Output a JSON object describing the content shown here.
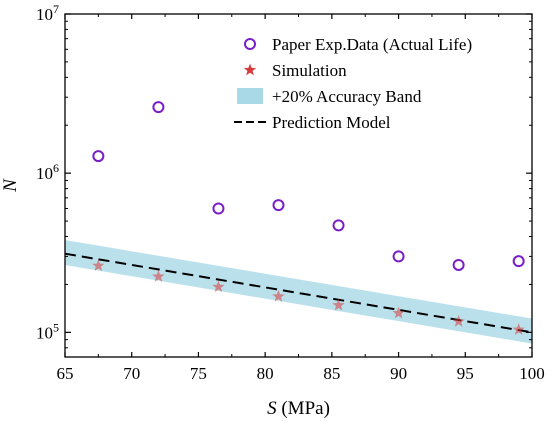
{
  "chart_data": {
    "type": "scatter",
    "title": "",
    "xlabel_var": "S",
    "xlabel_unit": " (MPa)",
    "ylabel": "N",
    "xlim": [
      65,
      100
    ],
    "ylim": [
      70000,
      10000000
    ],
    "yscale": "log",
    "x_ticks": [
      65,
      70,
      75,
      80,
      85,
      90,
      95,
      100
    ],
    "y_ticks": [
      {
        "value": 100000,
        "base": "10",
        "exp": "5"
      },
      {
        "value": 1000000,
        "base": "10",
        "exp": "6"
      },
      {
        "value": 10000000,
        "base": "10",
        "exp": "7"
      }
    ],
    "grid": false,
    "legend_position": "top-right",
    "colors": {
      "experimental": "#7a1fc8",
      "simulation": "#d83a3a",
      "band": "#a9d9e6",
      "model": "#000000"
    },
    "series": [
      {
        "name": "Paper Exp.Data (Actual Life)",
        "marker": "circle",
        "x": [
          67.5,
          72,
          76.5,
          81,
          85.5,
          90,
          94.5,
          99
        ],
        "y": [
          1280000,
          2600000,
          600000,
          630000,
          470000,
          300000,
          265000,
          280000
        ]
      },
      {
        "name": "Simulation",
        "marker": "star",
        "x": [
          67.5,
          72,
          76.5,
          81,
          85.5,
          90,
          94.5,
          99
        ],
        "y": [
          262000,
          224000,
          193000,
          168000,
          148000,
          132000,
          117000,
          104000
        ]
      },
      {
        "name": "+20% Accuracy Band",
        "type": "band",
        "x": [
          65,
          100
        ],
        "lower": [
          265000,
          85000
        ],
        "upper": [
          380000,
          122000
        ]
      },
      {
        "name": "Prediction Model",
        "type": "dashed-line",
        "x": [
          65,
          100
        ],
        "y": [
          312000,
          100000
        ]
      }
    ]
  }
}
